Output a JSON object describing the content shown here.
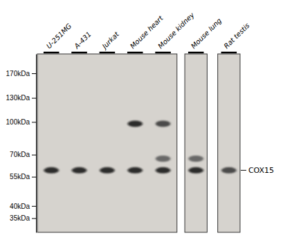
{
  "chart_data": {
    "type": "blot",
    "categories": [
      "U-251MG",
      "A-431",
      "Jurkat",
      "Mouse heart",
      "Mouse kidney",
      "Mouse lung",
      "Rat testis"
    ],
    "panels": [
      [
        "U-251MG",
        "A-431",
        "Jurkat",
        "Mouse heart",
        "Mouse kidney"
      ],
      [
        "Mouse lung"
      ],
      [
        "Rat testis"
      ]
    ],
    "bands": [
      {
        "category": "U-251MG",
        "value": 59,
        "color": "#111111"
      },
      {
        "category": "A-431",
        "value": 59,
        "color": "#111111"
      },
      {
        "category": "Jurkat",
        "value": 59,
        "color": "#111111"
      },
      {
        "category": "Mouse heart",
        "value": 98,
        "color": "#111111"
      },
      {
        "category": "Mouse heart",
        "value": 59,
        "color": "#111111"
      },
      {
        "category": "Mouse kidney",
        "value": 98,
        "color": "#333333"
      },
      {
        "category": "Mouse kidney",
        "value": 67,
        "color": "#555555"
      },
      {
        "category": "Mouse kidney",
        "value": 59,
        "color": "#111111"
      },
      {
        "category": "Mouse lung",
        "value": 59,
        "color": "#111111"
      },
      {
        "category": "Mouse lung",
        "value": 67,
        "color": "#555555"
      },
      {
        "category": "Rat testis",
        "value": 59,
        "color": "#333333"
      }
    ],
    "ylim": [
      30,
      210
    ],
    "yticks": [
      {
        "value": 170,
        "label": "170kDa"
      },
      {
        "value": 130,
        "label": "130kDa"
      },
      {
        "value": 100,
        "label": "100kDa"
      },
      {
        "value": 70,
        "label": "70kDa"
      },
      {
        "value": 55,
        "label": "55kDa"
      },
      {
        "value": 40,
        "label": "40kDa"
      },
      {
        "value": 35,
        "label": "35kDa"
      }
    ],
    "log": "y",
    "grid": false,
    "annotations": [
      {
        "text": "COX15",
        "y": 59
      }
    ]
  }
}
